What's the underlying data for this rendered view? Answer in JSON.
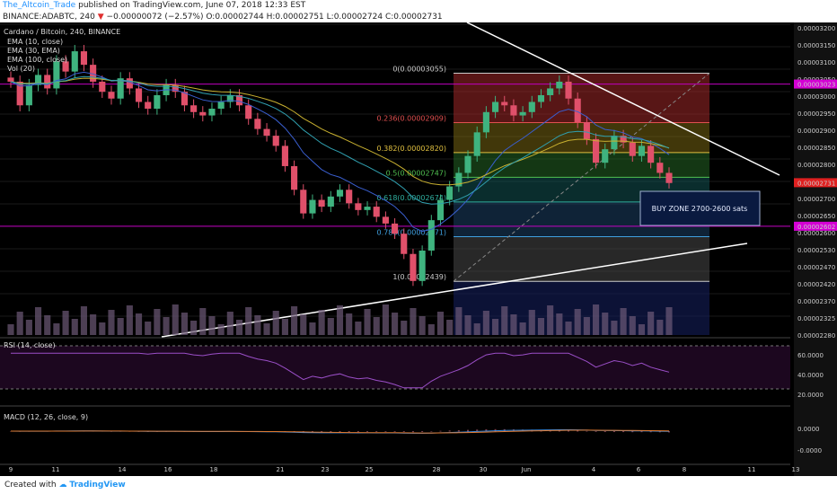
{
  "header": {
    "author": "The_Altcoin_Trade",
    "published": "published on TradingView.com, June 07, 2018 12:33 EST",
    "symbol": "BINANCE:ADABTC, 240",
    "ohlc": "O:0.00002744 H:0.00002751 L:0.00002724 C:0.00002731",
    "change": "−0.00000072 (−2.57%)"
  },
  "footer": {
    "created_with": "Created with",
    "brand": "TradingView"
  },
  "chart_data": {
    "type": "candlestick",
    "title": "Cardano / Bitcoin, 240, BINANCE",
    "indicators": [
      "EMA (10, close)",
      "EMA (30, EMA)",
      "EMA (100, close)",
      "Vol (20)"
    ],
    "x_ticks": [
      "9",
      "11",
      "14",
      "16",
      "18",
      "21",
      "23",
      "25",
      "28",
      "30",
      "Jun",
      "4",
      "6",
      "8",
      "11",
      "13"
    ],
    "ylim": [
      2.28e-05,
      3.2e-05
    ],
    "y_ticks": [
      "0.00003200",
      "0.00003150",
      "0.00003100",
      "0.00003050",
      "0.00003000",
      "0.00002950",
      "0.00002900",
      "0.00002850",
      "0.00002800",
      "0.00002750",
      "0.00002700",
      "0.00002650",
      "0.00002600",
      "0.00002530",
      "0.00002470",
      "0.00002420",
      "0.00002370",
      "0.00002325",
      "0.00002280"
    ],
    "price_labels": [
      {
        "value": "0.00003023",
        "color": "#d400d4"
      },
      {
        "value": "0.00002731",
        "color": "#e02020"
      },
      {
        "value": "0.00002602",
        "color": "#d400d4"
      }
    ],
    "fibonacci": [
      {
        "label": "0(0.00003055)",
        "value": 3.055e-05,
        "color": "#cccccc"
      },
      {
        "label": "0.236(0.00002909)",
        "value": 2.909e-05,
        "color": "#e05050"
      },
      {
        "label": "0.382(0.00002820)",
        "value": 2.82e-05,
        "color": "#e0c040"
      },
      {
        "label": "0.5(0.00002747)",
        "value": 2.747e-05,
        "color": "#50c050"
      },
      {
        "label": "0.618(0.00002674)",
        "value": 2.674e-05,
        "color": "#30b0a0"
      },
      {
        "label": "0.786(0.00002571)",
        "value": 2.571e-05,
        "color": "#3fa0e0"
      },
      {
        "label": "1(0.00002439)",
        "value": 2.439e-05,
        "color": "#cccccc"
      }
    ],
    "annotation": "BUY ZONE 2700-2600 sats",
    "candles_close": [
      3.03e-05,
      2.96e-05,
      3.02e-05,
      3.05e-05,
      3.01e-05,
      3.09e-05,
      3.06e-05,
      3.12e-05,
      3.08e-05,
      3.03e-05,
      3e-05,
      2.98e-05,
      3.04e-05,
      3.01e-05,
      2.97e-05,
      2.95e-05,
      2.99e-05,
      3.02e-05,
      3e-05,
      2.96e-05,
      2.94e-05,
      2.93e-05,
      2.95e-05,
      2.97e-05,
      2.99e-05,
      2.96e-05,
      2.92e-05,
      2.89e-05,
      2.87e-05,
      2.84e-05,
      2.78e-05,
      2.71e-05,
      2.64e-05,
      2.68e-05,
      2.66e-05,
      2.69e-05,
      2.71e-05,
      2.67e-05,
      2.65e-05,
      2.66e-05,
      2.63e-05,
      2.61e-05,
      2.58e-05,
      2.52e-05,
      2.44e-05,
      2.53e-05,
      2.62e-05,
      2.68e-05,
      2.72e-05,
      2.76e-05,
      2.81e-05,
      2.88e-05,
      2.94e-05,
      2.97e-05,
      2.96e-05,
      2.93e-05,
      2.94e-05,
      2.97e-05,
      2.99e-05,
      3.01e-05,
      3.03e-05,
      2.98e-05,
      2.91e-05,
      2.86e-05,
      2.79e-05,
      2.83e-05,
      2.87e-05,
      2.85e-05,
      2.81e-05,
      2.84e-05,
      2.79e-05,
      2.76e-05,
      2.73e-05
    ],
    "rsi": {
      "label": "RSI (14, close)",
      "ticks": [
        "60.0000",
        "40.0000",
        "20.0000"
      ]
    },
    "macd": {
      "label": "MACD (12, 26, close, 9)",
      "ticks": [
        "0.0000",
        "-0.0000"
      ]
    }
  }
}
